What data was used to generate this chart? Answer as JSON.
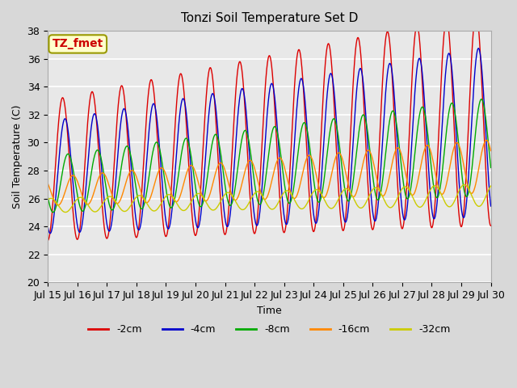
{
  "title": "Tonzi Soil Temperature Set D",
  "xlabel": "Time",
  "ylabel": "Soil Temperature (C)",
  "ylim": [
    20,
    38
  ],
  "annotation": "TZ_fmet",
  "annotation_color": "#cc0000",
  "annotation_bg": "#ffffcc",
  "annotation_border": "#999900",
  "series": [
    "-2cm",
    "-4cm",
    "-8cm",
    "-16cm",
    "-32cm"
  ],
  "colors": [
    "#dd0000",
    "#0000cc",
    "#00aa00",
    "#ff8800",
    "#cccc00"
  ],
  "tick_labels": [
    "Jul 15",
    "Jul 16",
    "Jul 17",
    "Jul 18",
    "Jul 19",
    "Jul 20",
    "Jul 21",
    "Jul 22",
    "Jul 23",
    "Jul 24",
    "Jul 25",
    "Jul 26",
    "Jul 27",
    "Jul 28",
    "Jul 29",
    "Jul 30"
  ],
  "period": 1.0,
  "n_points": 3000,
  "days": 15,
  "params": {
    "-2cm": {
      "base_mean": 28.0,
      "base_amp": 5.0,
      "mean_grow": 0.25,
      "amp_grow": 0.18,
      "lag": 0.0
    },
    "-4cm": {
      "base_mean": 27.5,
      "base_amp": 4.0,
      "mean_grow": 0.22,
      "amp_grow": 0.14,
      "lag": 0.08
    },
    "-8cm": {
      "base_mean": 27.0,
      "base_amp": 2.0,
      "mean_grow": 0.18,
      "amp_grow": 0.1,
      "lag": 0.18
    },
    "-16cm": {
      "base_mean": 26.5,
      "base_amp": 1.0,
      "mean_grow": 0.12,
      "amp_grow": 0.06,
      "lag": 0.35
    },
    "-32cm": {
      "base_mean": 25.5,
      "base_amp": 0.5,
      "mean_grow": 0.05,
      "amp_grow": 0.02,
      "lag": 0.6
    }
  }
}
